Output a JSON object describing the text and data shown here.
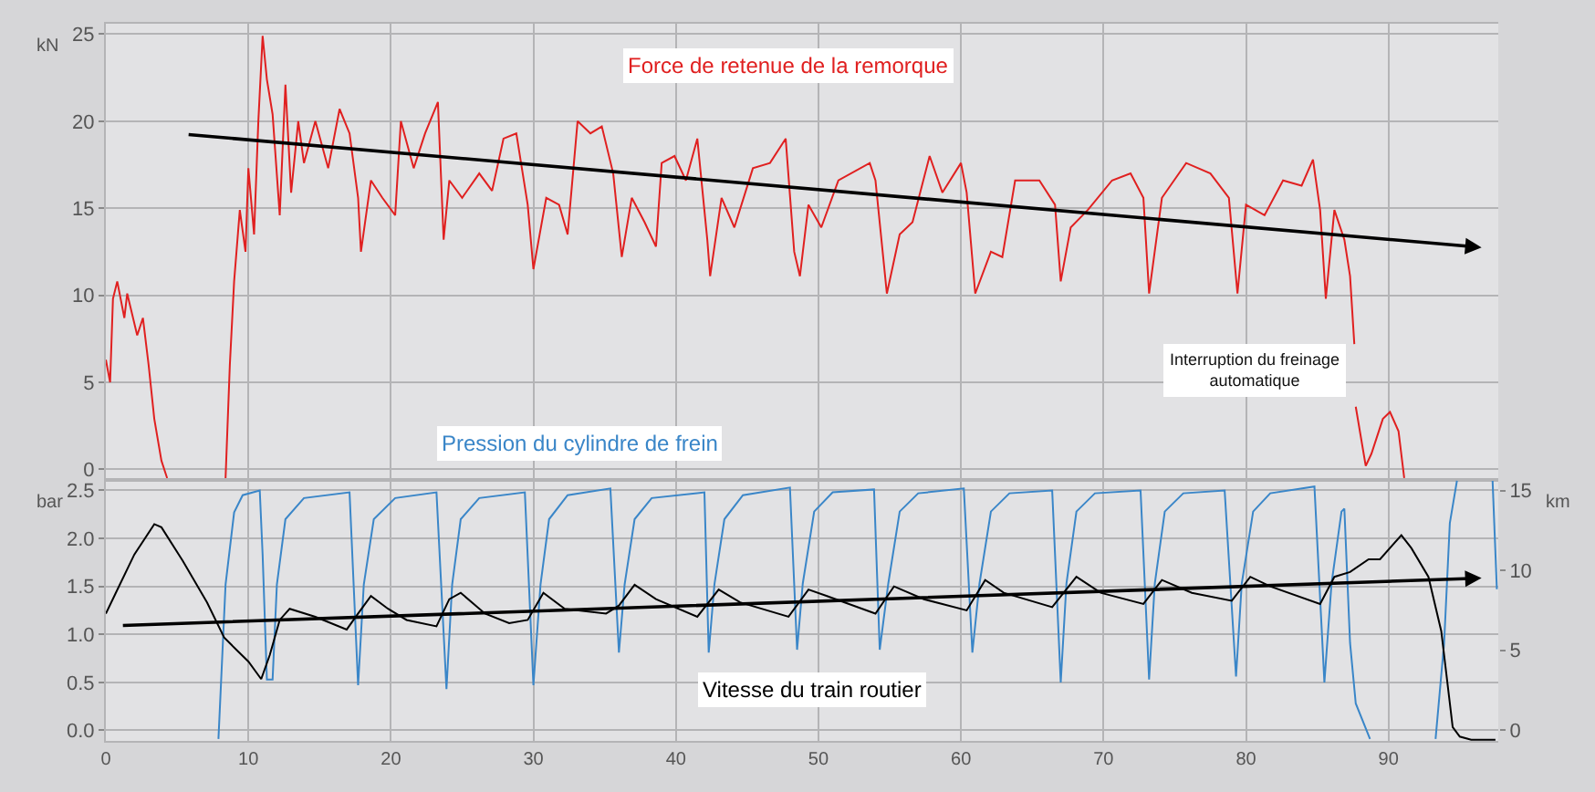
{
  "chart_data": [
    {
      "type": "line",
      "ylabel": "kN",
      "xlim": [
        0,
        97.7
      ],
      "xticks": [
        0,
        10,
        20,
        30,
        40,
        50,
        60,
        70,
        80,
        90
      ],
      "ylim": [
        -0.6,
        25.6
      ],
      "yticks": [
        0,
        5,
        10,
        15,
        20,
        25
      ],
      "tick_labels": "y",
      "grid": true,
      "legend": false,
      "series": [
        {
          "name": "Force de retenue de la remorque",
          "color": "#e02020",
          "x": [
            0,
            0.3,
            0.5,
            0.8,
            1.3,
            1.5,
            2.2,
            2.6,
            3.0,
            3.4,
            3.9,
            4.3,
            6.3,
            8.4,
            8.7,
            9.0,
            9.4,
            9.8,
            10.0,
            10.4,
            10.7,
            11.0,
            11.3,
            11.7,
            12.2,
            12.6,
            13.0,
            13.5,
            13.9,
            14.7,
            15.6,
            16.4,
            17.1,
            17.7,
            17.9,
            18.6,
            19.4,
            20.3,
            20.7,
            21.6,
            22.4,
            23.3,
            23.7,
            24.1,
            25.0,
            26.2,
            27.1,
            27.9,
            28.8,
            29.6,
            30.0,
            30.9,
            31.8,
            32.4,
            33.1,
            34.0,
            34.8,
            35.6,
            36.2,
            36.9,
            37.8,
            38.6,
            39.0,
            39.9,
            40.7,
            41.5,
            42.2,
            42.4,
            43.2,
            44.1,
            45.4,
            46.6,
            47.7,
            48.3,
            48.7,
            49.3,
            50.2,
            51.4,
            53.6,
            54.0,
            54.8,
            55.7,
            56.6,
            57.8,
            58.7,
            60.0,
            60.4,
            61.0,
            62.1,
            62.9,
            63.8,
            65.5,
            66.6,
            67.0,
            67.7,
            68.9,
            70.6,
            71.9,
            72.8,
            73.2,
            74.1,
            75.8,
            77.5,
            78.8,
            79.4,
            80.0,
            81.3,
            82.6,
            83.9,
            84.7,
            85.2,
            85.6,
            86.2,
            86.9,
            87.3,
            87.6,
            87.65,
            87.7,
            88.4,
            88.8,
            89.6,
            90.1,
            90.7,
            91.1
          ],
          "values": [
            6.3,
            5.0,
            9.8,
            10.8,
            8.7,
            10.1,
            7.7,
            8.7,
            6.0,
            2.9,
            0.5,
            -0.5,
            null,
            -0.5,
            6.0,
            10.8,
            14.9,
            12.5,
            17.3,
            13.5,
            20.0,
            24.9,
            22.4,
            20.4,
            14.6,
            22.1,
            15.9,
            20.0,
            17.6,
            20.0,
            17.3,
            20.7,
            19.3,
            15.6,
            12.5,
            16.6,
            15.6,
            14.6,
            20.0,
            17.3,
            19.3,
            21.1,
            13.2,
            16.6,
            15.6,
            17.0,
            16.0,
            19.0,
            19.3,
            15.2,
            11.5,
            15.6,
            15.2,
            13.5,
            20.0,
            19.3,
            19.7,
            17.0,
            12.2,
            15.6,
            14.2,
            12.8,
            17.6,
            18.0,
            16.6,
            19.0,
            13.2,
            11.1,
            15.6,
            13.9,
            17.3,
            17.6,
            19.0,
            12.5,
            11.1,
            15.2,
            13.9,
            16.6,
            17.6,
            16.6,
            10.1,
            13.5,
            14.2,
            18.0,
            15.9,
            17.6,
            15.9,
            10.1,
            12.5,
            12.2,
            16.6,
            16.6,
            15.2,
            10.8,
            13.9,
            14.9,
            16.6,
            17.0,
            15.6,
            10.1,
            15.6,
            17.6,
            17.0,
            15.6,
            10.1,
            15.2,
            14.6,
            16.6,
            16.3,
            17.8,
            14.9,
            9.8,
            14.9,
            13.2,
            11.1,
            7.2,
            null,
            3.6,
            0.2,
            0.9,
            2.9,
            3.3,
            2.2,
            -0.5
          ]
        }
      ],
      "annotations": [
        "Interruption du freinage automatique"
      ]
    },
    {
      "type": "line",
      "ylabel": "bar",
      "y2label": "km",
      "xlim": [
        0,
        97.7
      ],
      "xticks": [
        0,
        10,
        20,
        30,
        40,
        50,
        60,
        70,
        80,
        90
      ],
      "ylim": [
        -0.11,
        2.61
      ],
      "yticks": [
        {
          "value": 0,
          "label": "0.0"
        },
        {
          "value": 0.5,
          "label": "0.5"
        },
        {
          "value": 1,
          "label": "1.0"
        },
        {
          "value": 1.5,
          "label": "1.5"
        },
        {
          "value": 2,
          "label": "2.0"
        },
        {
          "value": 2.5,
          "label": "2.5"
        }
      ],
      "y2lim": [
        -0.67,
        15.67
      ],
      "y2ticks": [
        0,
        5,
        10,
        15
      ],
      "grid": true,
      "legend": false,
      "series": [
        {
          "name": "Pression du cylindre de frein",
          "color": "#3a86c8",
          "x": [
            7.9,
            8.4,
            9.0,
            9.6,
            10.8,
            11.0,
            11.3,
            11.7,
            12.0,
            12.6,
            13.9,
            17.1,
            17.7,
            18.1,
            18.8,
            20.3,
            23.2,
            23.9,
            24.3,
            24.9,
            26.2,
            29.4,
            30.0,
            30.5,
            31.1,
            32.4,
            35.4,
            36.0,
            36.4,
            37.1,
            38.3,
            42.0,
            42.3,
            42.7,
            43.4,
            44.7,
            48.0,
            48.5,
            48.9,
            49.7,
            51.0,
            53.9,
            54.3,
            54.9,
            55.7,
            57.0,
            60.2,
            60.8,
            61.3,
            62.1,
            63.4,
            66.4,
            67.0,
            67.4,
            68.1,
            69.4,
            72.6,
            73.2,
            73.6,
            74.3,
            75.6,
            78.5,
            79.3,
            79.7,
            80.5,
            81.7,
            84.8,
            85.5,
            86.0,
            86.7,
            86.9,
            87.3,
            87.7,
            88.7,
            91.0,
            93.3,
            93.9,
            94.3,
            94.8,
            96.0,
            97.3,
            97.6
          ],
          "values": [
            -0.09,
            1.52,
            2.27,
            2.45,
            2.5,
            1.83,
            0.53,
            0.53,
            1.52,
            2.2,
            2.42,
            2.48,
            0.47,
            1.52,
            2.2,
            2.42,
            2.48,
            0.43,
            1.52,
            2.2,
            2.42,
            2.48,
            0.47,
            1.52,
            2.2,
            2.45,
            2.52,
            0.81,
            1.52,
            2.2,
            2.42,
            2.48,
            0.81,
            1.52,
            2.2,
            2.45,
            2.53,
            0.84,
            1.53,
            2.28,
            2.48,
            2.51,
            0.84,
            1.53,
            2.28,
            2.47,
            2.52,
            0.81,
            1.53,
            2.28,
            2.47,
            2.5,
            0.5,
            1.53,
            2.28,
            2.47,
            2.5,
            0.53,
            1.53,
            2.28,
            2.47,
            2.5,
            0.56,
            1.53,
            2.28,
            2.47,
            2.54,
            0.5,
            1.53,
            2.28,
            2.31,
            0.91,
            0.28,
            -0.09,
            null,
            -0.09,
            0.91,
            2.16,
            2.6,
            null,
            2.6,
            1.47
          ]
        },
        {
          "name": "Vitesse du train routier",
          "color": "#000000",
          "axis": "y2",
          "x": [
            0,
            0.7,
            2.0,
            3.4,
            3.9,
            5.4,
            7.1,
            8.3,
            9.2,
            10.0,
            10.9,
            11.5,
            12.2,
            12.9,
            14.7,
            16.9,
            17.7,
            18.6,
            19.8,
            21.1,
            23.2,
            24.1,
            24.9,
            26.6,
            28.3,
            29.6,
            30.7,
            32.2,
            35.1,
            36.0,
            37.1,
            38.6,
            41.5,
            43.0,
            44.5,
            47.9,
            49.3,
            50.6,
            54.0,
            55.3,
            57.4,
            60.4,
            61.7,
            63.0,
            66.4,
            68.1,
            69.8,
            72.8,
            74.1,
            76.2,
            79.0,
            80.3,
            81.7,
            85.2,
            86.2,
            87.3,
            88.6,
            89.4,
            90.9,
            91.6,
            92.8,
            93.7,
            94.5,
            95.0,
            95.8,
            97.5
          ],
          "values": [
            7.3,
            8.6,
            11.0,
            12.9,
            12.7,
            10.6,
            8.0,
            5.8,
            5.0,
            4.3,
            3.2,
            4.7,
            6.9,
            7.6,
            7.1,
            6.3,
            7.3,
            8.4,
            7.6,
            6.9,
            6.5,
            8.2,
            8.6,
            7.3,
            6.7,
            6.9,
            8.6,
            7.6,
            7.3,
            7.8,
            9.1,
            8.2,
            7.1,
            8.8,
            8.0,
            7.1,
            8.8,
            8.4,
            7.3,
            9.0,
            8.2,
            7.5,
            9.4,
            8.6,
            7.7,
            9.6,
            8.6,
            7.9,
            9.4,
            8.6,
            8.1,
            9.6,
            9.0,
            7.9,
            9.6,
            9.9,
            10.7,
            10.7,
            12.2,
            11.4,
            9.6,
            6.2,
            0.2,
            -0.4,
            -0.6,
            -0.6
          ]
        }
      ]
    }
  ]
}
